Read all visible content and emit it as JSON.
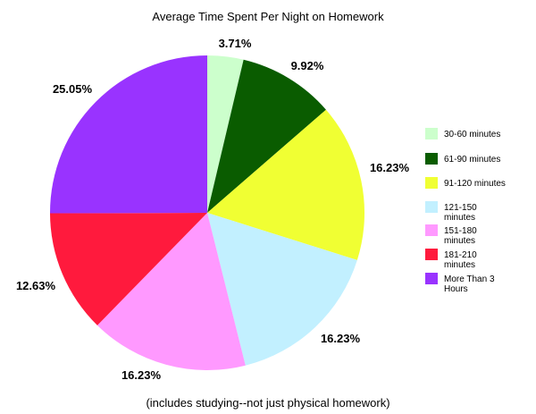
{
  "chart_data": {
    "type": "pie",
    "title": "Average Time Spent Per Night on Homework",
    "footnote": "(includes studying--not just physical homework)",
    "slices": [
      {
        "label": "30-60 minutes",
        "value": 3.71,
        "value_label": "3.71%",
        "color": "#ccffcc"
      },
      {
        "label": "61-90 minutes",
        "value": 9.92,
        "value_label": "9.92%",
        "color": "#0a5c00"
      },
      {
        "label": "91-120 minutes",
        "value": 16.23,
        "value_label": "16.23%",
        "color": "#f0ff33"
      },
      {
        "label": "121-150 minutes",
        "value": 16.23,
        "value_label": "16.23%",
        "color": "#c2f0ff"
      },
      {
        "label": "151-180 minutes",
        "value": 16.23,
        "value_label": "16.23%",
        "color": "#ff99ff"
      },
      {
        "label": "181-210 minutes",
        "value": 12.63,
        "value_label": "12.63%",
        "color": "#ff1a3d"
      },
      {
        "label": "More Than 3 Hours",
        "value": 25.05,
        "value_label": "25.05%",
        "color": "#9933ff"
      }
    ],
    "legend_position": "right"
  }
}
